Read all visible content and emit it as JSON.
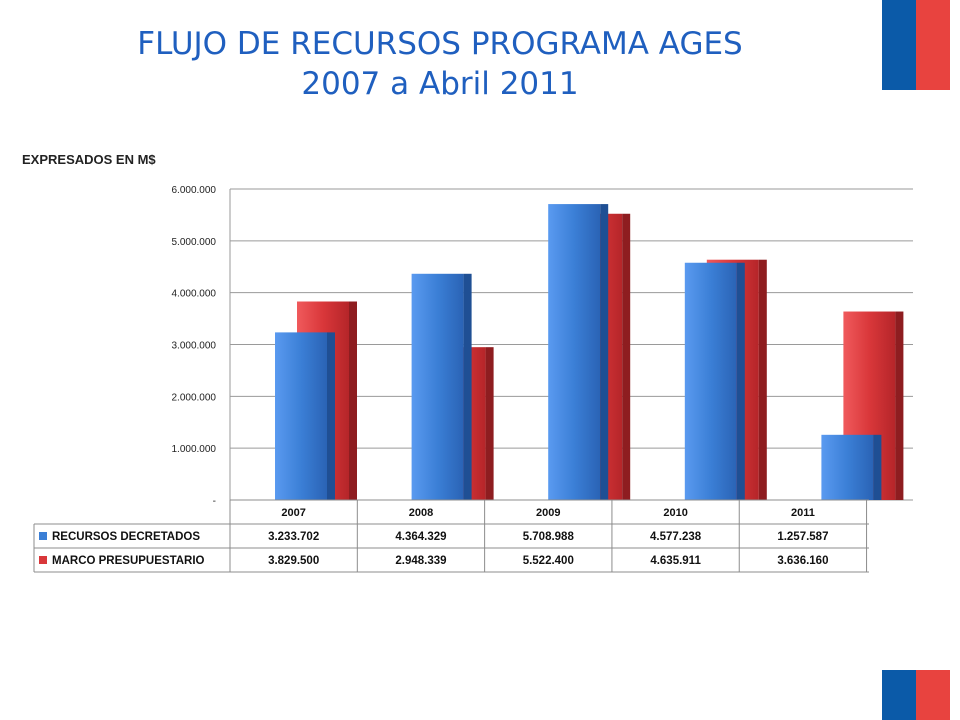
{
  "header": {
    "title_line1": "FLUJO DE RECURSOS PROGRAMA AGES",
    "title_line2": "2007 a Abril 2011"
  },
  "chart_data": {
    "type": "bar",
    "units_label": "EXPRESADOS EN M$",
    "categories": [
      "2007",
      "2008",
      "2009",
      "2010",
      "2011"
    ],
    "ylim": [
      0,
      6000000
    ],
    "yticks": [
      0,
      1000000,
      2000000,
      3000000,
      4000000,
      5000000,
      6000000
    ],
    "ytick_labels": [
      "-",
      "1.000.000",
      "2.000.000",
      "3.000.000",
      "4.000.000",
      "5.000.000",
      "6.000.000"
    ],
    "grid": true,
    "legend": "data-table-below",
    "series": [
      {
        "name": "RECURSOS DECRETADOS",
        "color": "#3b7fd6",
        "values": [
          3233702,
          4364329,
          5708988,
          4577238,
          1257587
        ],
        "value_labels": [
          "3.233.702",
          "4.364.329",
          "5.708.988",
          "4.577.238",
          "1.257.587"
        ]
      },
      {
        "name": "MARCO PRESUPUESTARIO",
        "color": "#d9373a",
        "values": [
          3829500,
          2948339,
          5522400,
          4635911,
          3636160
        ],
        "value_labels": [
          "3.829.500",
          "2.948.339",
          "5.522.400",
          "4.635.911",
          "3.636.160"
        ]
      }
    ]
  }
}
